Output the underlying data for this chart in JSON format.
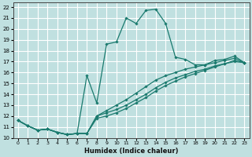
{
  "xlabel": "Humidex (Indice chaleur)",
  "ylabel": "",
  "bg_color": "#c0e0e0",
  "grid_color": "#ffffff",
  "line_color": "#1a7a6e",
  "marker_color": "#1a7a6e",
  "xlim": [
    -0.5,
    23.5
  ],
  "ylim": [
    10,
    22.4
  ],
  "xticks": [
    0,
    1,
    2,
    3,
    4,
    5,
    6,
    7,
    8,
    9,
    10,
    11,
    12,
    13,
    14,
    15,
    16,
    17,
    18,
    19,
    20,
    21,
    22,
    23
  ],
  "yticks": [
    10,
    11,
    12,
    13,
    14,
    15,
    16,
    17,
    18,
    19,
    20,
    21,
    22
  ],
  "lines": [
    {
      "x": [
        0,
        1,
        2,
        3,
        4,
        5,
        6,
        7,
        8,
        9,
        10,
        11,
        12,
        13,
        14,
        15,
        16,
        17,
        18,
        19,
        20,
        21,
        22,
        23
      ],
      "y": [
        11.6,
        11.1,
        10.7,
        10.8,
        10.5,
        10.3,
        10.4,
        15.7,
        13.2,
        18.6,
        18.8,
        21.0,
        20.5,
        21.7,
        21.8,
        20.5,
        17.4,
        17.2,
        16.7,
        16.7,
        17.1,
        17.2,
        17.5,
        16.9
      ]
    },
    {
      "x": [
        0,
        1,
        2,
        3,
        4,
        5,
        6,
        7,
        8,
        9,
        10,
        11,
        12,
        13,
        14,
        15,
        16,
        17,
        18,
        19,
        20,
        21,
        22,
        23
      ],
      "y": [
        11.6,
        11.1,
        10.7,
        10.8,
        10.5,
        10.3,
        10.4,
        10.4,
        12.0,
        12.5,
        13.0,
        13.5,
        14.1,
        14.7,
        15.3,
        15.7,
        16.0,
        16.3,
        16.5,
        16.7,
        16.9,
        17.1,
        17.3,
        16.9
      ]
    },
    {
      "x": [
        0,
        1,
        2,
        3,
        4,
        5,
        6,
        7,
        8,
        9,
        10,
        11,
        12,
        13,
        14,
        15,
        16,
        17,
        18,
        19,
        20,
        21,
        22,
        23
      ],
      "y": [
        11.6,
        11.1,
        10.7,
        10.8,
        10.5,
        10.3,
        10.4,
        10.4,
        12.0,
        12.3,
        12.6,
        13.0,
        13.5,
        14.0,
        14.6,
        15.1,
        15.5,
        15.8,
        16.1,
        16.3,
        16.6,
        16.8,
        17.1,
        16.9
      ]
    },
    {
      "x": [
        0,
        1,
        2,
        3,
        4,
        5,
        6,
        7,
        8,
        9,
        10,
        11,
        12,
        13,
        14,
        15,
        16,
        17,
        18,
        19,
        20,
        21,
        22,
        23
      ],
      "y": [
        11.6,
        11.1,
        10.7,
        10.8,
        10.5,
        10.3,
        10.4,
        10.4,
        11.8,
        12.0,
        12.3,
        12.7,
        13.2,
        13.7,
        14.3,
        14.8,
        15.2,
        15.6,
        15.9,
        16.2,
        16.5,
        16.8,
        17.0,
        16.9
      ]
    }
  ]
}
